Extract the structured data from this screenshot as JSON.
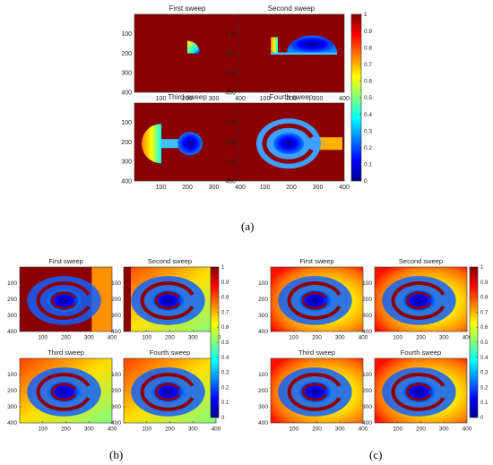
{
  "colors": {
    "background": "#8b0000",
    "ring": "#8b0000",
    "jet": [
      "#00008f",
      "#0000ff",
      "#0080ff",
      "#00ffff",
      "#80ff80",
      "#ffff00",
      "#ff8000",
      "#ff0000",
      "#800000"
    ]
  },
  "figure": {
    "a": {
      "caption": "(a)",
      "panel_titles": [
        "First sweep",
        "Second sweep",
        "Third sweep",
        "Fourth sweep"
      ],
      "x_ticks": [
        "100",
        "200",
        "300",
        "400"
      ],
      "y_ticks": [
        "100",
        "200",
        "300",
        "400"
      ],
      "colorbar_ticks": [
        "0",
        "0.1",
        "0.2",
        "0.3",
        "0.4",
        "0.5",
        "0.6",
        "0.7",
        "0.8",
        "0.9",
        "1"
      ]
    },
    "b": {
      "caption": "(b)",
      "panel_titles": [
        "First sweep",
        "Second sweep",
        "Third sweep",
        "Fourth sweep"
      ],
      "x_ticks": [
        "100",
        "200",
        "300",
        "400"
      ],
      "y_ticks": [
        "100",
        "200",
        "300",
        "400"
      ],
      "colorbar_ticks": [
        "0",
        "0.1",
        "0.2",
        "0.3",
        "0.4",
        "0.5",
        "0.6",
        "0.7",
        "0.8",
        "0.9",
        "1"
      ]
    },
    "c": {
      "caption": "(c)",
      "panel_titles": [
        "First sweep",
        "Second sweep",
        "Third sweep",
        "Fourth sweep"
      ],
      "x_ticks": [
        "100",
        "200",
        "300",
        "400"
      ],
      "y_ticks": [
        "100",
        "200",
        "300",
        "400"
      ],
      "colorbar_ticks": [
        "0",
        "0.1",
        "0.2",
        "0.3",
        "0.4",
        "0.5",
        "0.6",
        "0.7",
        "0.8",
        "0.9",
        "1"
      ]
    }
  },
  "chart_data": [
    {
      "type": "heatmap",
      "panel": "a",
      "subplots": [
        "First sweep",
        "Second sweep",
        "Third sweep",
        "Fourth sweep"
      ],
      "xlim": [
        0,
        400
      ],
      "ylim": [
        400,
        0
      ],
      "colorbar": {
        "min": 0,
        "max": 1,
        "colormap": "jet"
      }
    },
    {
      "type": "heatmap",
      "panel": "b",
      "subplots": [
        "First sweep",
        "Second sweep",
        "Third sweep",
        "Fourth sweep"
      ],
      "xlim": [
        0,
        400
      ],
      "ylim": [
        400,
        0
      ],
      "colorbar": {
        "min": 0,
        "max": 1,
        "colormap": "jet"
      }
    },
    {
      "type": "heatmap",
      "panel": "c",
      "subplots": [
        "First sweep",
        "Second sweep",
        "Third sweep",
        "Fourth sweep"
      ],
      "xlim": [
        0,
        400
      ],
      "ylim": [
        400,
        0
      ],
      "colorbar": {
        "min": 0,
        "max": 1,
        "colormap": "jet"
      }
    }
  ]
}
